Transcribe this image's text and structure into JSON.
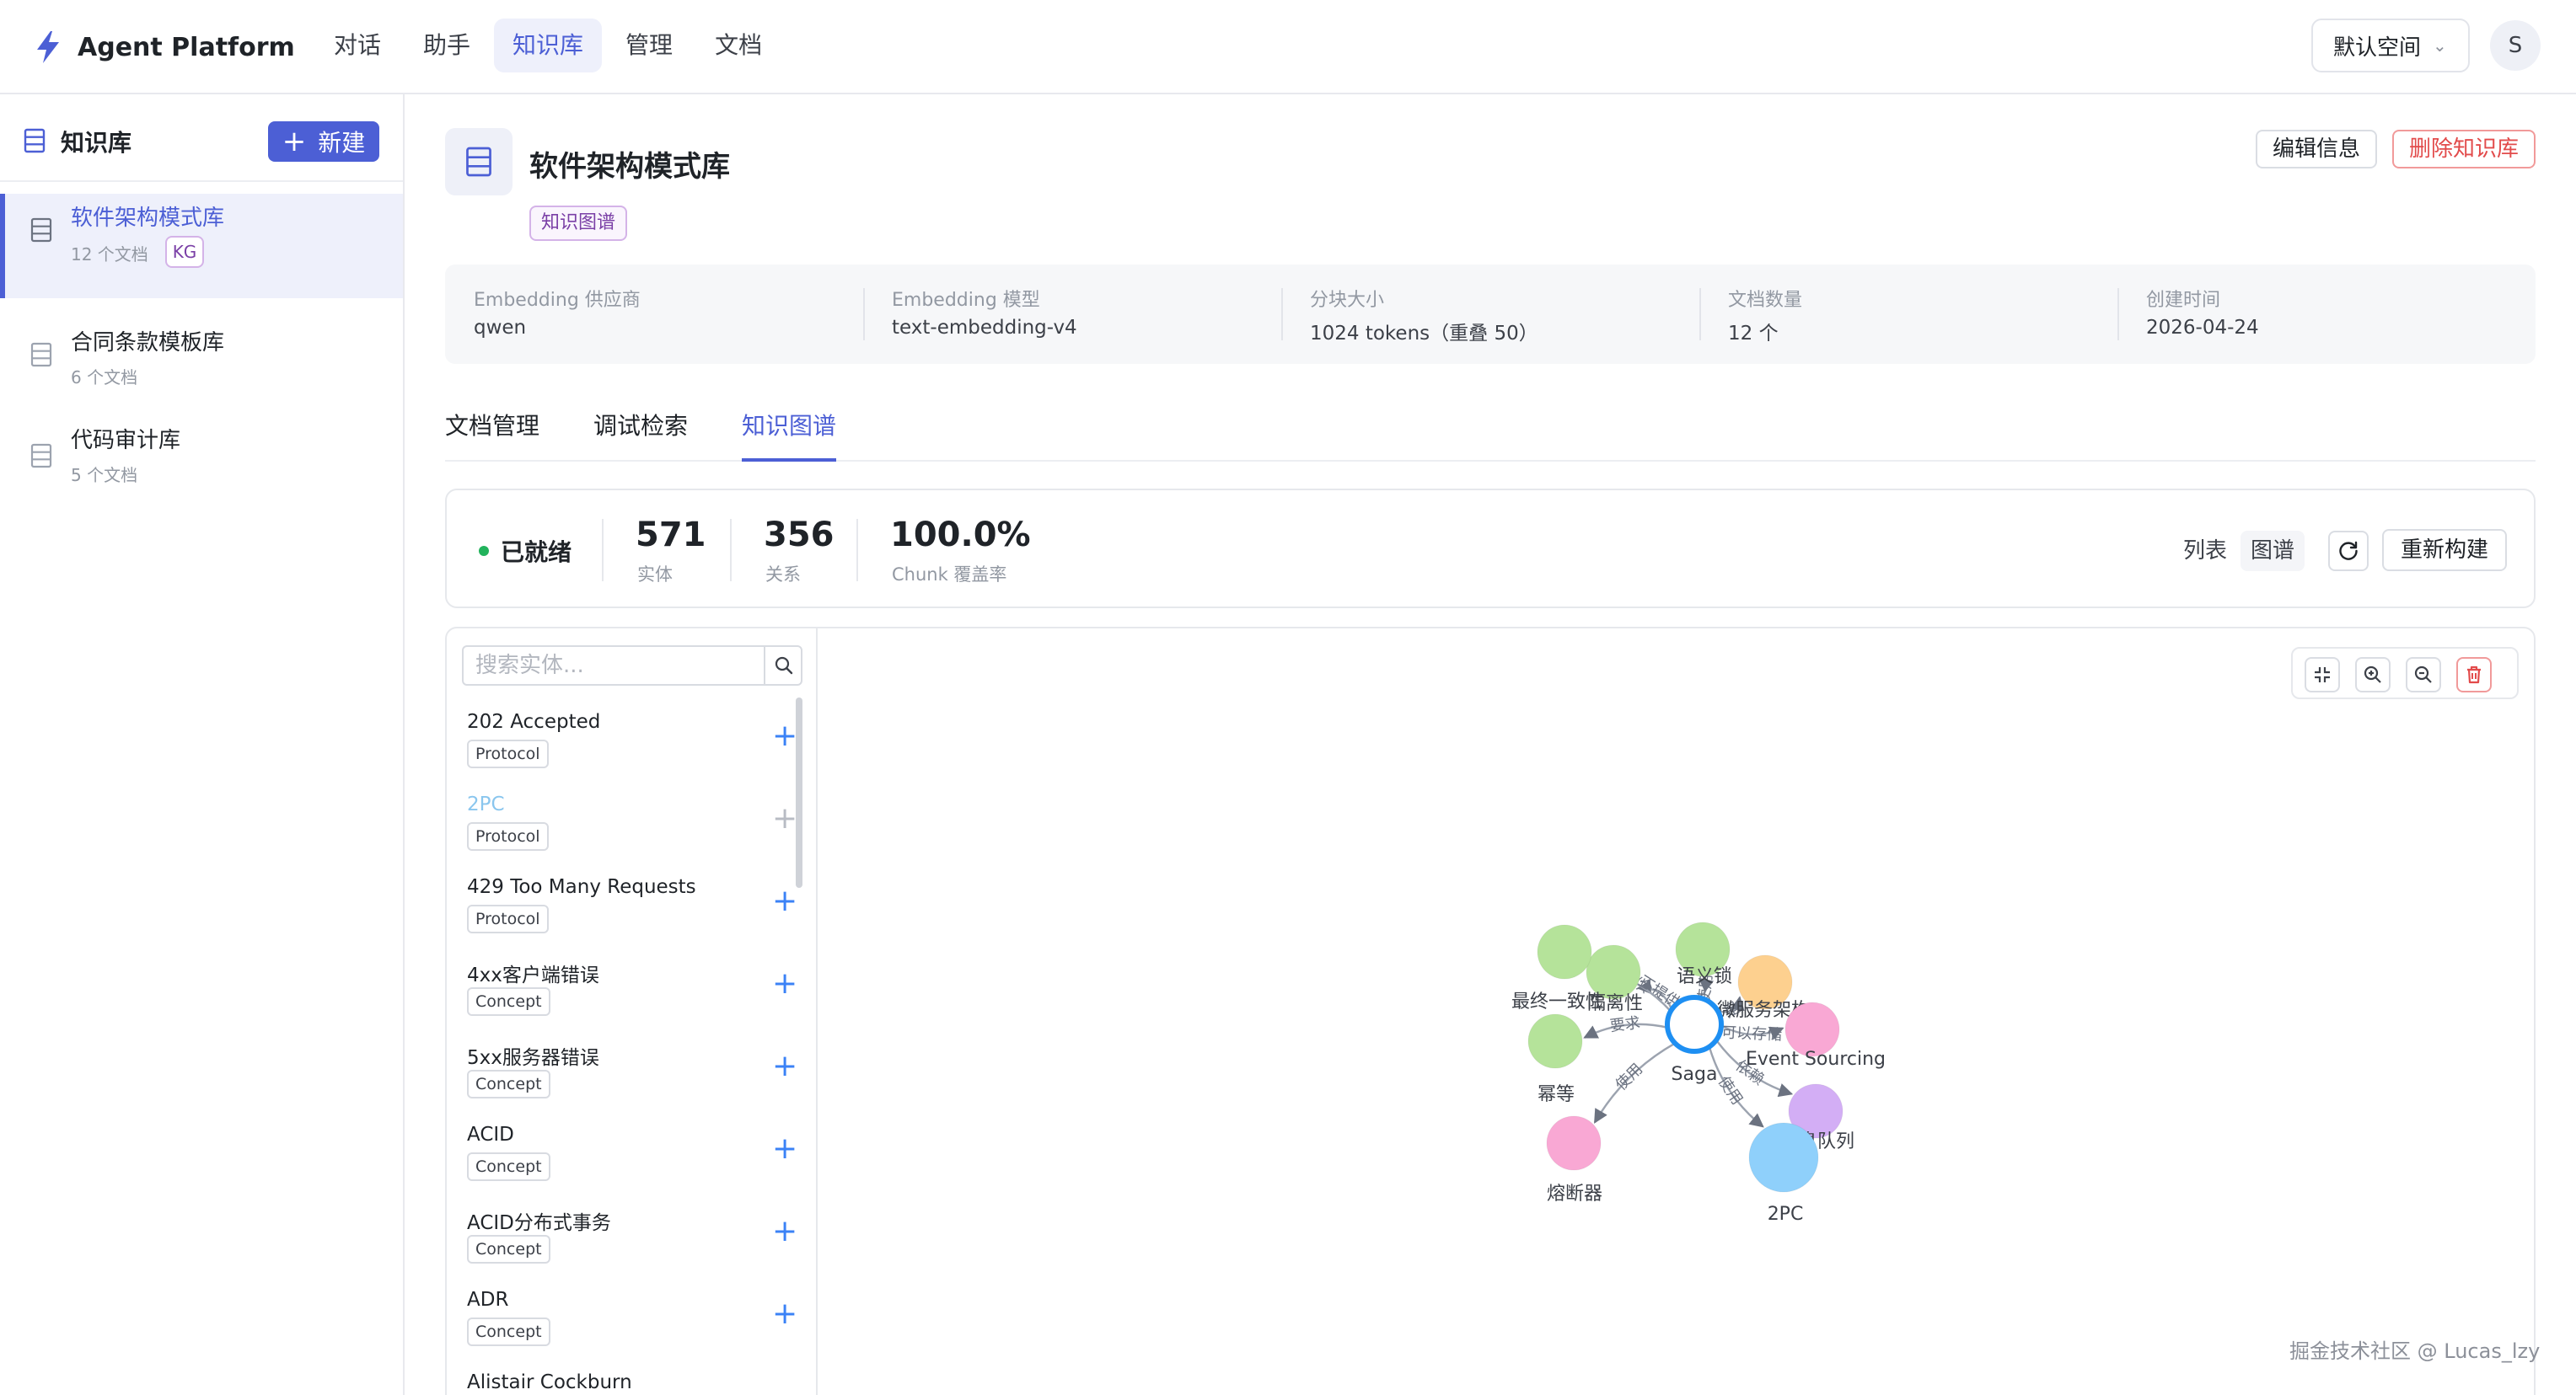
{
  "app": {
    "name": "Agent Platform"
  },
  "topnav": [
    {
      "label": "对话"
    },
    {
      "label": "助手"
    },
    {
      "label": "知识库",
      "active": true
    },
    {
      "label": "管理"
    },
    {
      "label": "文档"
    }
  ],
  "space_select": {
    "value": "默认空间"
  },
  "user": {
    "avatar_letter": "S"
  },
  "sidebar": {
    "title": "知识库",
    "new_button": "新建",
    "items": [
      {
        "name": "软件架构模式库",
        "count": "12 个文档",
        "tag": "KG",
        "active": true
      },
      {
        "name": "合同条款模板库",
        "count": "6 个文档"
      },
      {
        "name": "代码审计库",
        "count": "5 个文档"
      }
    ]
  },
  "kb": {
    "title": "软件架构模式库",
    "type_tag": "知识图谱",
    "edit_button": "编辑信息",
    "delete_button": "删除知识库",
    "info": [
      {
        "label": "Embedding 供应商",
        "value": "qwen"
      },
      {
        "label": "Embedding 模型",
        "value": "text-embedding-v4"
      },
      {
        "label": "分块大小",
        "value": "1024 tokens（重叠 50）"
      },
      {
        "label": "文档数量",
        "value": "12 个"
      },
      {
        "label": "创建时间",
        "value": "2026-04-24"
      }
    ]
  },
  "tabs": [
    {
      "label": "文档管理"
    },
    {
      "label": "调试检索"
    },
    {
      "label": "知识图谱",
      "active": true
    }
  ],
  "graph_status": {
    "status": "已就绪",
    "status_color": "#22b35c",
    "entities": {
      "value": "571",
      "label": "实体"
    },
    "relations": {
      "value": "356",
      "label": "关系"
    },
    "coverage": {
      "value": "100.0%",
      "label": "Chunk 覆盖率"
    },
    "view_list": "列表",
    "view_graph": "图谱",
    "rebuild_button": "重新构建"
  },
  "entity_search": {
    "placeholder": "搜索实体..."
  },
  "entities": [
    {
      "name": "202 Accepted",
      "type": "Protocol"
    },
    {
      "name": "2PC",
      "type": "Protocol",
      "selected": true
    },
    {
      "name": "429 Too Many Requests",
      "type": "Protocol"
    },
    {
      "name": "4xx客户端错误",
      "type": "Concept"
    },
    {
      "name": "5xx服务器错误",
      "type": "Concept"
    },
    {
      "name": "ACID",
      "type": "Concept"
    },
    {
      "name": "ACID分布式事务",
      "type": "Concept"
    },
    {
      "name": "ADR",
      "type": "Concept"
    },
    {
      "name": "Alistair Cockburn",
      "type": ""
    }
  ],
  "graph_tools": [
    "fit-icon",
    "zoom-in-icon",
    "zoom-out-icon",
    "trash-icon"
  ],
  "graph": {
    "center": {
      "label": "Saga"
    },
    "nodes": [
      {
        "label": "隔离性",
        "color": "#b5e39a"
      },
      {
        "label": "语义锁",
        "color": "#b5e39a"
      },
      {
        "label": "微服务架构",
        "color": "#fdd08f"
      },
      {
        "label": "Event Sourcing",
        "color": "#f9a8d4"
      },
      {
        "label": "消息队列",
        "color": "#d3aef5"
      },
      {
        "label": "2PC",
        "color": "#8fd0fb"
      },
      {
        "label": "熔断器",
        "color": "#f9a8d4"
      },
      {
        "label": "幂等",
        "color": "#b5e39a"
      },
      {
        "label": "最终一致性",
        "color": "#b5e39a"
      }
    ],
    "edges": [
      {
        "label": "不提供"
      },
      {
        "label": "使用"
      },
      {
        "label": "是"
      },
      {
        "label": "可以存储"
      },
      {
        "label": "依赖"
      },
      {
        "label": "使用"
      },
      {
        "label": "使用"
      },
      {
        "label": "要求"
      },
      {
        "label": "提供"
      }
    ]
  },
  "watermark": "掘金技术社区 @ Lucas_lzy"
}
